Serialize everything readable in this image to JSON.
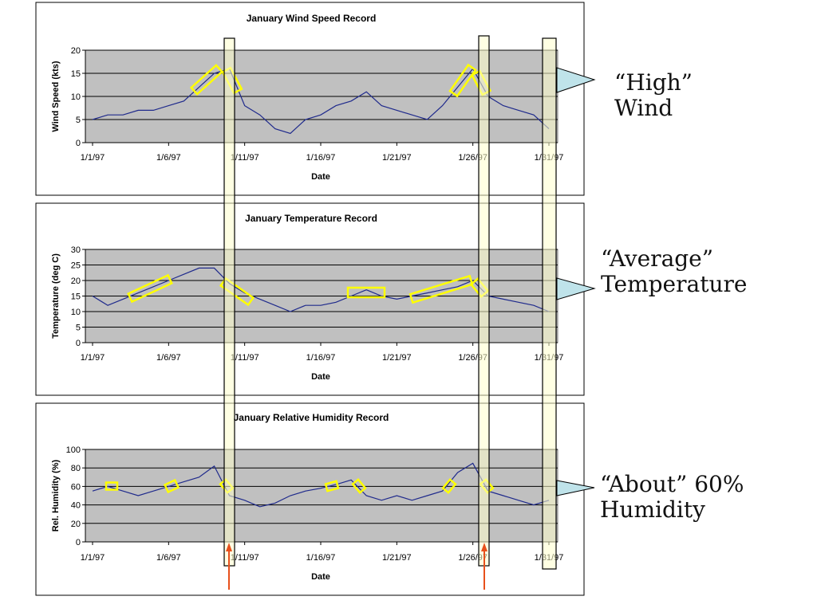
{
  "chart_data": [
    {
      "type": "line",
      "title": "January Wind Speed Record",
      "xlabel": "Date",
      "ylabel": "Wind Speed (kts)",
      "ylim": [
        0,
        20
      ],
      "yticks": [
        0,
        5,
        10,
        15,
        20
      ],
      "xtick_labels": [
        "1/1/97",
        "1/6/97",
        "1/11/97",
        "1/16/97",
        "1/21/97",
        "1/26/97",
        "1/31/97"
      ],
      "grid": true,
      "x": [
        1,
        2,
        3,
        4,
        5,
        6,
        7,
        8,
        9,
        10,
        11,
        12,
        13,
        14,
        15,
        16,
        17,
        18,
        19,
        20,
        21,
        22,
        23,
        24,
        25,
        26,
        27,
        28,
        29,
        30,
        31
      ],
      "values": [
        5,
        6,
        6,
        7,
        7,
        8,
        9,
        12,
        15,
        16,
        8,
        6,
        3,
        2,
        5,
        6,
        8,
        9,
        11,
        8,
        7,
        6,
        5,
        8,
        12,
        16,
        10,
        8,
        7,
        6,
        3
      ]
    },
    {
      "type": "line",
      "title": "January Temperature Record",
      "xlabel": "Date",
      "ylabel": "Temperature (deg C)",
      "ylim": [
        0,
        30
      ],
      "yticks": [
        0,
        5,
        10,
        15,
        20,
        25,
        30
      ],
      "xtick_labels": [
        "1/1/97",
        "1/6/97",
        "1/11/97",
        "1/16/97",
        "1/21/97",
        "1/26/97",
        "1/31/97"
      ],
      "grid": true,
      "x": [
        1,
        2,
        3,
        4,
        5,
        6,
        7,
        8,
        9,
        10,
        11,
        12,
        13,
        14,
        15,
        16,
        17,
        18,
        19,
        20,
        21,
        22,
        23,
        24,
        25,
        26,
        27,
        28,
        29,
        30,
        31
      ],
      "values": [
        15,
        12,
        14,
        16,
        18,
        20,
        22,
        24,
        24,
        19,
        16,
        14,
        12,
        10,
        12,
        12,
        13,
        15,
        17,
        15,
        14,
        15,
        16,
        17,
        18,
        20,
        15,
        14,
        13,
        12,
        10
      ]
    },
    {
      "type": "line",
      "title": "January Relative Humidity Record",
      "xlabel": "Date",
      "ylabel": "Rel. Humidity (%)",
      "ylim": [
        0,
        100
      ],
      "yticks": [
        0,
        20,
        40,
        60,
        80,
        100
      ],
      "xtick_labels": [
        "1/1/97",
        "1/6/97",
        "1/11/97",
        "1/16/97",
        "1/21/97",
        "1/26/97",
        "1/31/97"
      ],
      "grid": true,
      "x": [
        1,
        2,
        3,
        4,
        5,
        6,
        7,
        8,
        9,
        10,
        11,
        12,
        13,
        14,
        15,
        16,
        17,
        18,
        19,
        20,
        21,
        22,
        23,
        24,
        25,
        26,
        27,
        28,
        29,
        30,
        31
      ],
      "values": [
        55,
        60,
        55,
        50,
        55,
        60,
        65,
        70,
        82,
        50,
        45,
        38,
        42,
        50,
        55,
        58,
        62,
        67,
        50,
        45,
        50,
        45,
        50,
        55,
        75,
        85,
        55,
        50,
        45,
        40,
        45
      ]
    }
  ],
  "callouts": {
    "wind": [
      "“High”",
      "Wind"
    ],
    "temperature": [
      "“Average”",
      "Temperature"
    ],
    "humidity": [
      "“About” 60%",
      "Humidity"
    ]
  },
  "colors": {
    "plot_bg": "#c0c0c0",
    "line": "#1f2a8c",
    "highlight": "#ffff00",
    "band_fill": "#ffffcc",
    "arrow": "#e8501c",
    "callout_fill": "#bfe3ea"
  }
}
